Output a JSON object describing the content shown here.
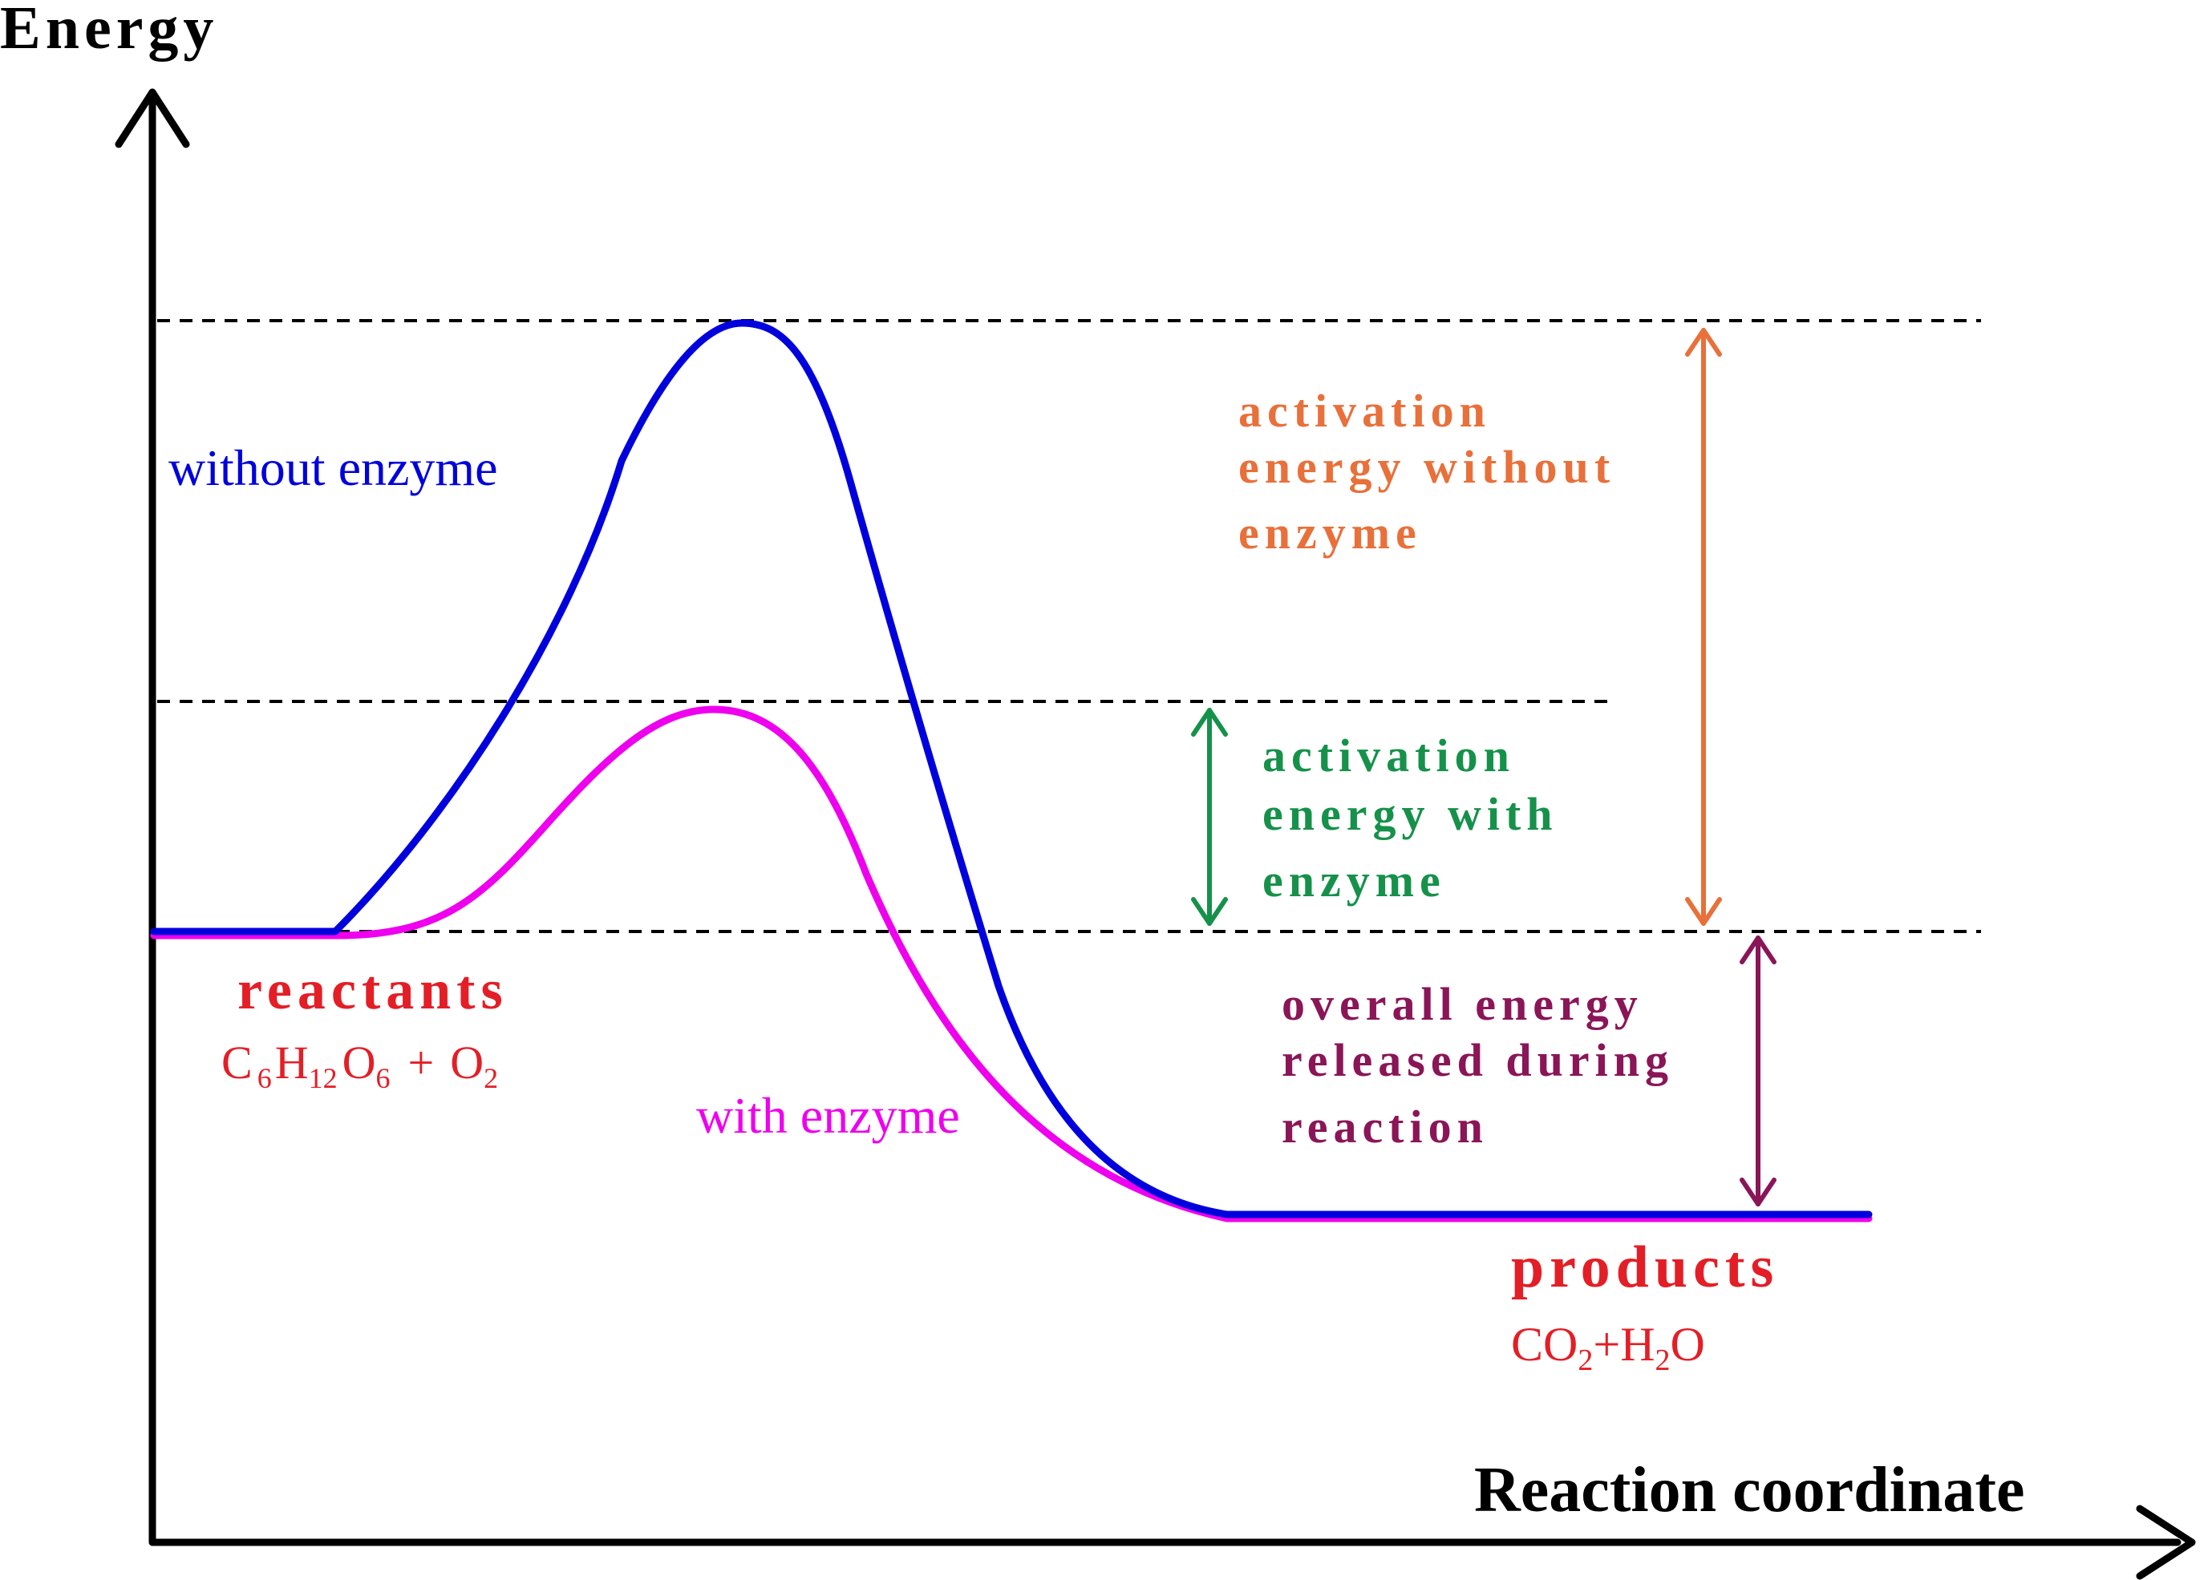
{
  "axes": {
    "y_label": "Energy",
    "x_label": "Reaction coordinate"
  },
  "curves": {
    "without_enzyme": {
      "label": "without enzyme",
      "color": "#0000dd"
    },
    "with_enzyme": {
      "label": "with enzyme",
      "color": "#ee00ee"
    }
  },
  "reactants": {
    "title": "reactants",
    "formula": {
      "c": "C",
      "c_sub": "6",
      "h": "H",
      "h_sub": "12",
      "o": "O",
      "o_sub": "6",
      "plus": "+",
      "o2": "O",
      "o2_sub": "2"
    },
    "color": "#e41e26"
  },
  "products": {
    "title": "products",
    "formula": {
      "co": "CO",
      "co_sub": "2",
      "plus": "+",
      "h": "H",
      "h_sub": "2",
      "o": "O"
    },
    "color": "#e41e26"
  },
  "annotations": {
    "activation_without": {
      "lines": [
        "activation",
        "energy without",
        "enzyme"
      ],
      "color": "#e8703a"
    },
    "activation_with": {
      "lines": [
        "activation",
        "energy with",
        "enzyme"
      ],
      "color": "#16914a"
    },
    "overall_released": {
      "lines": [
        "overall energy",
        "released during",
        "reaction"
      ],
      "color": "#8a1557"
    }
  }
}
